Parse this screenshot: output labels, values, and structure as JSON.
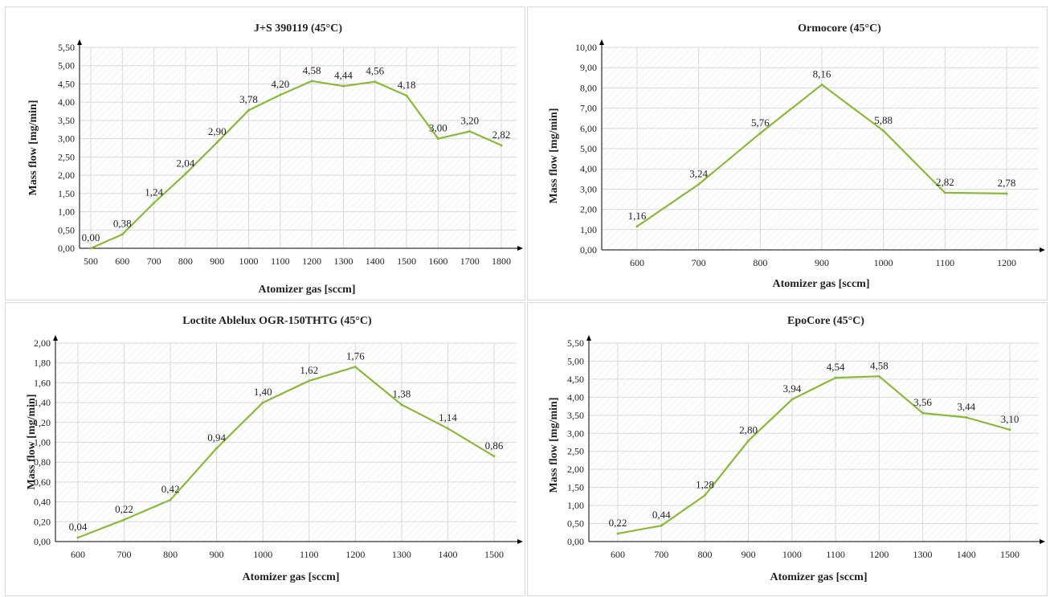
{
  "colors": {
    "line": "#8cb83a",
    "grid": "#d9d9d9",
    "axis": "#000000",
    "hatch": "#e4e4e4"
  },
  "chart_data": [
    {
      "type": "line",
      "title": "J+S 390119 (45°C)",
      "xlabel": "Atomizer gas [sccm]",
      "ylabel": "Mass flow [mg/min]",
      "categories": [
        "500",
        "600",
        "700",
        "800",
        "900",
        "1000",
        "1100",
        "1200",
        "1300",
        "1400",
        "1500",
        "1600",
        "1700",
        "1800"
      ],
      "values": [
        0.0,
        0.38,
        1.24,
        2.04,
        2.9,
        3.78,
        4.2,
        4.58,
        4.44,
        4.56,
        4.18,
        3.0,
        3.2,
        2.82
      ],
      "data_labels": [
        "0,00",
        "0,38",
        "1,24",
        "2,04",
        "2,90",
        "3,78",
        "4,20",
        "4,58",
        "4,44",
        "4,56",
        "4,18",
        "3,00",
        "3,20",
        "2,82"
      ],
      "ylim": [
        0,
        5.5
      ],
      "yticks": [
        "0,00",
        "0,50",
        "1,00",
        "1,50",
        "2,00",
        "2,50",
        "3,00",
        "3,50",
        "4,00",
        "4,50",
        "5,00",
        "5,50"
      ],
      "ytick_values": [
        0,
        0.5,
        1,
        1.5,
        2,
        2.5,
        3,
        3.5,
        4,
        4.5,
        5,
        5.5
      ],
      "grid": true,
      "legend": "none"
    },
    {
      "type": "line",
      "title": "Ormocore (45°C)",
      "xlabel": "Atomizer gas [sccm]",
      "ylabel": "Mass flow [mg/min]",
      "categories": [
        "600",
        "700",
        "800",
        "900",
        "1000",
        "1100",
        "1200"
      ],
      "values": [
        1.16,
        3.24,
        5.76,
        8.16,
        5.88,
        2.82,
        2.78
      ],
      "data_labels": [
        "1,16",
        "3,24",
        "5,76",
        "8,16",
        "5,88",
        "2,82",
        "2,78"
      ],
      "ylim": [
        0,
        10
      ],
      "yticks": [
        "0,00",
        "1,00",
        "2,00",
        "3,00",
        "4,00",
        "5,00",
        "6,00",
        "7,00",
        "8,00",
        "9,00",
        "10,00"
      ],
      "ytick_values": [
        0,
        1,
        2,
        3,
        4,
        5,
        6,
        7,
        8,
        9,
        10
      ],
      "grid": true,
      "legend": "none"
    },
    {
      "type": "line",
      "title": "Loctite Ablelux OGR-150THTG  (45°C)",
      "xlabel": "Atomizer gas [sccm]",
      "ylabel": "Mass flow [mg/min]",
      "categories": [
        "600",
        "700",
        "800",
        "900",
        "1000",
        "1100",
        "1200",
        "1300",
        "1400",
        "1500"
      ],
      "values": [
        0.04,
        0.22,
        0.42,
        0.94,
        1.4,
        1.62,
        1.76,
        1.38,
        1.14,
        0.86
      ],
      "data_labels": [
        "0,04",
        "0,22",
        "0,42",
        "0,94",
        "1,40",
        "1,62",
        "1,76",
        "1,38",
        "1,14",
        "0,86"
      ],
      "ylim": [
        0,
        2
      ],
      "yticks": [
        "0,00",
        "0,20",
        "0,40",
        "0,60",
        "0,80",
        "1,00",
        "1,20",
        "1,40",
        "1,60",
        "1,80",
        "2,00"
      ],
      "ytick_values": [
        0,
        0.2,
        0.4,
        0.6,
        0.8,
        1,
        1.2,
        1.4,
        1.6,
        1.8,
        2
      ],
      "grid": true,
      "legend": "none"
    },
    {
      "type": "line",
      "title": "EpoCore (45°C)",
      "xlabel": "Atomizer gas [sccm]",
      "ylabel": "Mass flow [mg/min]",
      "categories": [
        "600",
        "700",
        "800",
        "900",
        "1000",
        "1100",
        "1200",
        "1300",
        "1400",
        "1500"
      ],
      "values": [
        0.22,
        0.44,
        1.28,
        2.8,
        3.94,
        4.54,
        4.58,
        3.56,
        3.44,
        3.1
      ],
      "data_labels": [
        "0,22",
        "0,44",
        "1,28",
        "2,80",
        "3,94",
        "4,54",
        "4,58",
        "3,56",
        "3,44",
        "3,10"
      ],
      "ylim": [
        0,
        5.5
      ],
      "yticks": [
        "0,00",
        "0,50",
        "1,00",
        "1,50",
        "2,00",
        "2,50",
        "3,00",
        "3,50",
        "4,00",
        "4,50",
        "5,00",
        "5,50"
      ],
      "ytick_values": [
        0,
        0.5,
        1,
        1.5,
        2,
        2.5,
        3,
        3.5,
        4,
        4.5,
        5,
        5.5
      ],
      "grid": true,
      "legend": "none"
    }
  ]
}
